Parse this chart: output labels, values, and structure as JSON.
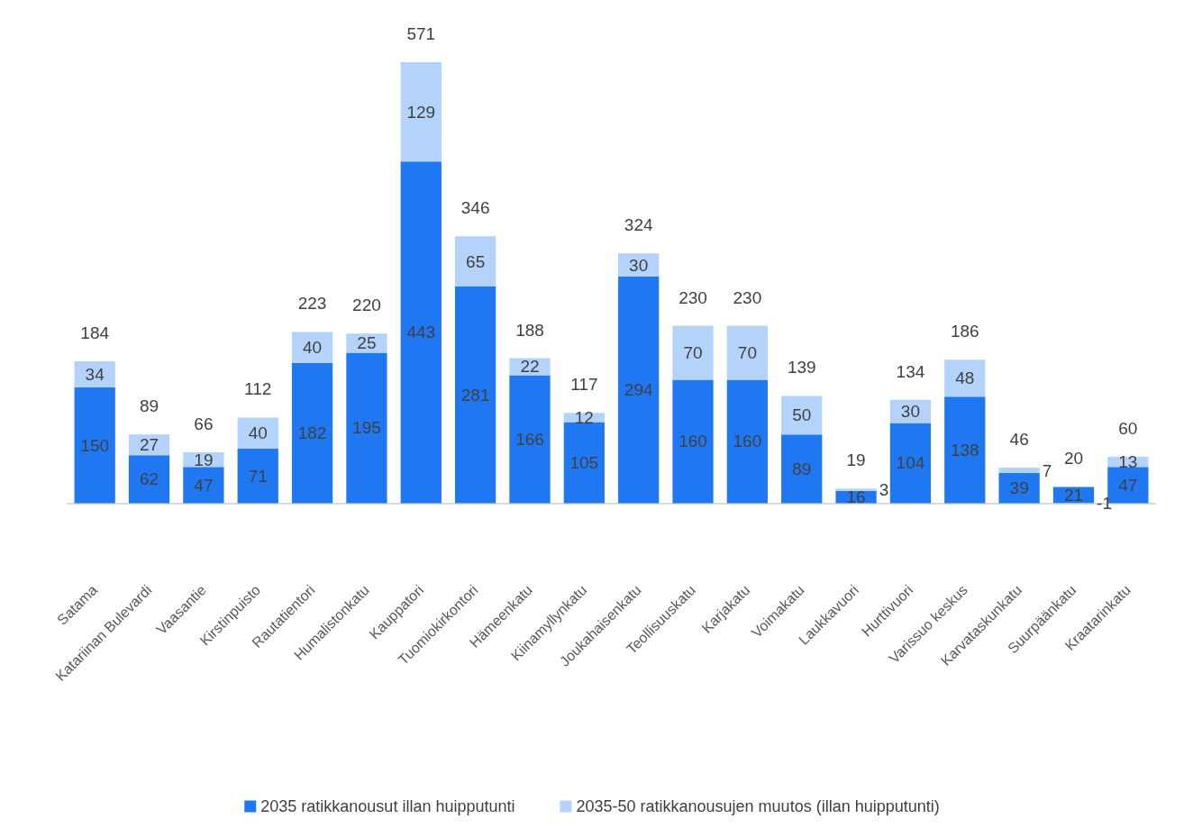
{
  "chart_data": {
    "type": "bar",
    "stacked": true,
    "data_labels": true,
    "legend": "bottom",
    "categories": [
      "Satama",
      "Katariinan Bulevardi",
      "Vaasantie",
      "Kirstinpuisto",
      "Rautatientori",
      "Humalistonkatu",
      "Kauppatori",
      "Tuomiokirkontori",
      "Hämeenkatu",
      "Kiinamyllynkatu",
      "Joukahaisenkatu",
      "Teollisuuskatu",
      "Karjakatu",
      "Voimakatu",
      "Laukkavuori",
      "Hurttivuori",
      "Varissuo keskus",
      "Karvataskunkatu",
      "Suurpäänkatu",
      "Kraatarinkatu"
    ],
    "series": [
      {
        "name": "2035 ratikkanousut illan huipputunti",
        "color": "#1f78f2",
        "values": [
          150,
          62,
          47,
          71,
          182,
          195,
          443,
          281,
          166,
          105,
          294,
          160,
          160,
          89,
          16,
          104,
          138,
          39,
          21,
          47
        ]
      },
      {
        "name": "2035-50 ratikkanousujen muutos (illan huipputunti)",
        "color": "#b4d3fa",
        "values": [
          34,
          27,
          19,
          40,
          40,
          25,
          129,
          65,
          22,
          12,
          30,
          70,
          70,
          50,
          3,
          30,
          48,
          7,
          -1,
          13
        ]
      }
    ],
    "totals": [
      "184",
      "89",
      "66",
      "112",
      "223",
      "220",
      "571",
      "346",
      "188",
      "117",
      "324",
      "230",
      "230",
      "139",
      "19",
      "134",
      "186",
      "46",
      "20",
      "60"
    ]
  }
}
